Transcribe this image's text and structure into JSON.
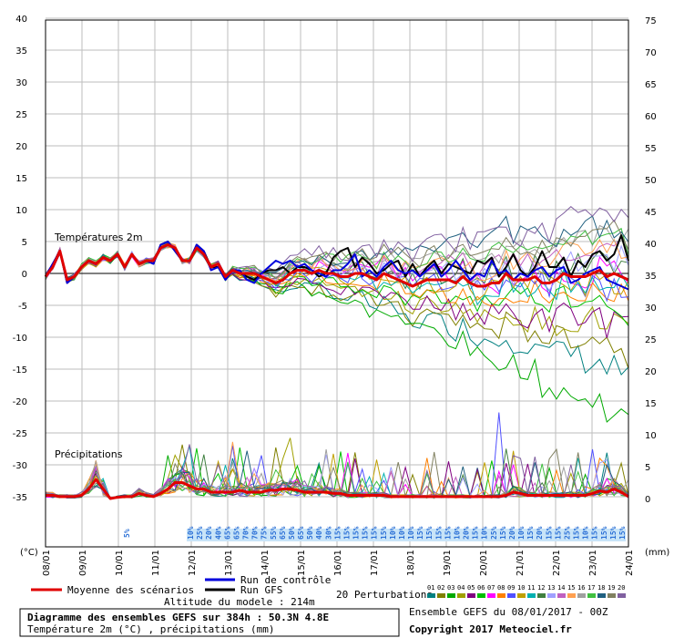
{
  "chart_data": {
    "type": "line",
    "left_axis": {
      "label": "(°C)",
      "ticks": [
        "40",
        "35",
        "30",
        "25",
        "20",
        "15",
        "10",
        "5",
        "0",
        "-5",
        "-10",
        "-15",
        "-20",
        "-25",
        "-30",
        "-35"
      ],
      "range": [
        -35,
        40
      ]
    },
    "right_axis": {
      "label": "(mm)",
      "ticks": [
        "75",
        "70",
        "65",
        "60",
        "55",
        "50",
        "45",
        "40",
        "35",
        "30",
        "25",
        "20",
        "15",
        "10",
        "5",
        "0"
      ],
      "range": [
        0,
        75
      ]
    },
    "x_axis_dates": [
      "08/01",
      "09/01",
      "10/01",
      "11/01",
      "12/01",
      "13/01",
      "14/01",
      "15/01",
      "16/01",
      "17/01",
      "18/01",
      "19/01",
      "20/01",
      "21/01",
      "22/01",
      "23/01",
      "24/01"
    ],
    "annotations": {
      "temp": "Températures 2m",
      "precip": "Précipitations"
    },
    "temperature_mean": [
      -0.5,
      1,
      3.5,
      -1,
      -0.5,
      1,
      2,
      1.5,
      2.5,
      2,
      3,
      1,
      3,
      1.5,
      2,
      2,
      4,
      4.5,
      4,
      2,
      2,
      4,
      3,
      1,
      1.5,
      -0.5,
      0.5,
      0,
      0,
      0,
      -0.5,
      -1,
      -1.5,
      -1,
      0,
      0.5,
      0.5,
      0,
      0.5,
      0,
      0,
      -0.5,
      -0.5,
      0,
      0,
      -0.5,
      -1,
      0,
      -0.5,
      -1,
      -1.5,
      -2,
      -1.5,
      -1,
      -1,
      -1,
      -1,
      -1.5,
      -0.5,
      -1.5,
      -2,
      -2,
      -1.5,
      -1.5,
      0,
      -1,
      -1,
      -1,
      -0.5,
      -1.5,
      -1.5,
      -1,
      0,
      -0.5,
      -0.5,
      -0.5,
      0,
      0.5,
      -0.5,
      0,
      -0.5,
      -1
    ],
    "temperature_control": [
      -0.5,
      1.5,
      3.5,
      -1.5,
      -0.5,
      1,
      2,
      1.5,
      2.5,
      2,
      3,
      1,
      3,
      1.5,
      2,
      1.5,
      4.5,
      5,
      3.5,
      2,
      2,
      4.5,
      3.5,
      0.5,
      1,
      -1,
      0.5,
      0.5,
      -1,
      -1.5,
      0,
      1,
      2,
      1.5,
      2,
      1,
      1.5,
      0.5,
      0,
      -0.5,
      0.5,
      0.5,
      1.5,
      3,
      -0.5,
      0.5,
      -0.5,
      1,
      2,
      0.5,
      0,
      0.5,
      -0.5,
      0.5,
      1.5,
      -0.5,
      0.5,
      2,
      0.5,
      -1,
      0,
      -0.5,
      2,
      0,
      0.5,
      -1,
      0,
      -0.5,
      0.5,
      1,
      -0.5,
      0.5,
      1,
      -1.5,
      -1,
      0,
      0.5,
      1,
      -1,
      -1.5,
      -2,
      -2.5
    ],
    "temperature_gfs": [
      -0.5,
      1.5,
      3.5,
      -1.5,
      -0.5,
      1,
      2,
      1.5,
      2.5,
      2,
      3,
      1,
      3,
      1.5,
      2,
      1.5,
      4.5,
      5,
      3.5,
      2,
      2,
      4.5,
      3.5,
      1,
      1,
      -1,
      0.5,
      0,
      -0.5,
      -1,
      0,
      0.5,
      0.5,
      1,
      0,
      1,
      1,
      0.5,
      -0.5,
      0,
      2.5,
      3.5,
      4,
      1,
      2.5,
      1.5,
      0,
      0.5,
      1.5,
      2,
      -0.5,
      1.5,
      -0.5,
      1,
      2,
      0,
      1.5,
      1,
      0.5,
      0,
      2,
      1.5,
      2.5,
      -0.5,
      1,
      3,
      0.5,
      -0.5,
      1,
      3.5,
      1,
      1,
      2.5,
      -0.5,
      2,
      1,
      3,
      3.5,
      2,
      3,
      6,
      2
    ],
    "precip_mean_mm": [
      0.5,
      0.5,
      0.3,
      0.3,
      0.3,
      0.5,
      1.5,
      3,
      1.5,
      0,
      0.2,
      0.3,
      0.3,
      0.8,
      0.5,
      0.3,
      0.8,
      1.5,
      2.5,
      2.5,
      2,
      1.5,
      1.5,
      1,
      1,
      1,
      1,
      1.3,
      1,
      1,
      1,
      1.3,
      1.3,
      1.5,
      1.5,
      1.3,
      1,
      1,
      1,
      1,
      0.8,
      0.8,
      0.5,
      0.5,
      0.5,
      0.5,
      0.5,
      0.5,
      0.3,
      0.3,
      0.3,
      0.3,
      0.3,
      0.3,
      0.3,
      0.3,
      0.3,
      0.3,
      0.3,
      0.3,
      0.3,
      0.3,
      0.3,
      0.3,
      0.5,
      1,
      0.8,
      0.5,
      0.5,
      0.5,
      0.5,
      0.5,
      0.5,
      0.5,
      0.5,
      0.5,
      0.8,
      1.2,
      1,
      1.5,
      1,
      0.3
    ],
    "precip_probabilities": [
      "5%",
      "10%",
      "25%",
      "20%",
      "40%",
      "65%",
      "65%",
      "70%",
      "70%",
      "75%",
      "55%",
      "65%",
      "50%",
      "65%",
      "50%",
      "40%",
      "30%",
      "15%",
      "15%",
      "15%",
      "15%",
      "15%",
      "15%",
      "10%",
      "10%",
      "10%",
      "15%",
      "15%",
      "15%",
      "15%",
      "10%",
      "20%",
      "15%",
      "10%",
      "25%",
      "15%",
      "20%",
      "10%",
      "15%",
      "20%",
      "15%",
      "15%",
      "25%",
      "15%",
      "10%",
      "15%",
      "15%",
      "15%",
      "15%"
    ],
    "colors": {
      "mean": "#e00000",
      "control": "#0000dd",
      "gfs": "#000000",
      "perturbations": [
        "#008080",
        "#808000",
        "#00aa00",
        "#a0a000",
        "#800080",
        "#00c000",
        "#ff00ff",
        "#ff8000",
        "#5050ff",
        "#c0a000",
        "#00b0b0",
        "#408040",
        "#a0a0ff",
        "#c060c0",
        "#ffa050",
        "#a0a0a0",
        "#40c040",
        "#206080",
        "#808060",
        "#8060a0"
      ]
    }
  },
  "legend": {
    "mean_label": "Moyenne des scénarios",
    "control_label": "Run de contrôle",
    "gfs_label": "Run GFS",
    "perturbations_label": "20 Perturbations",
    "perturbation_numbers": [
      "01",
      "02",
      "03",
      "04",
      "05",
      "06",
      "07",
      "08",
      "09",
      "10",
      "11",
      "12",
      "13",
      "14",
      "15",
      "16",
      "17",
      "18",
      "19",
      "20"
    ],
    "altitude": "Altitude du modele : 214m"
  },
  "footer": {
    "title": "Diagramme des ensembles GEFS sur 384h : 50.3N 4.8E",
    "subtitle": "Température 2m (°C) , précipitations (mm)",
    "run_info": "Ensemble GEFS du 08/01/2017 - 00Z",
    "copyright": "Copyright 2017 Meteociel.fr"
  }
}
